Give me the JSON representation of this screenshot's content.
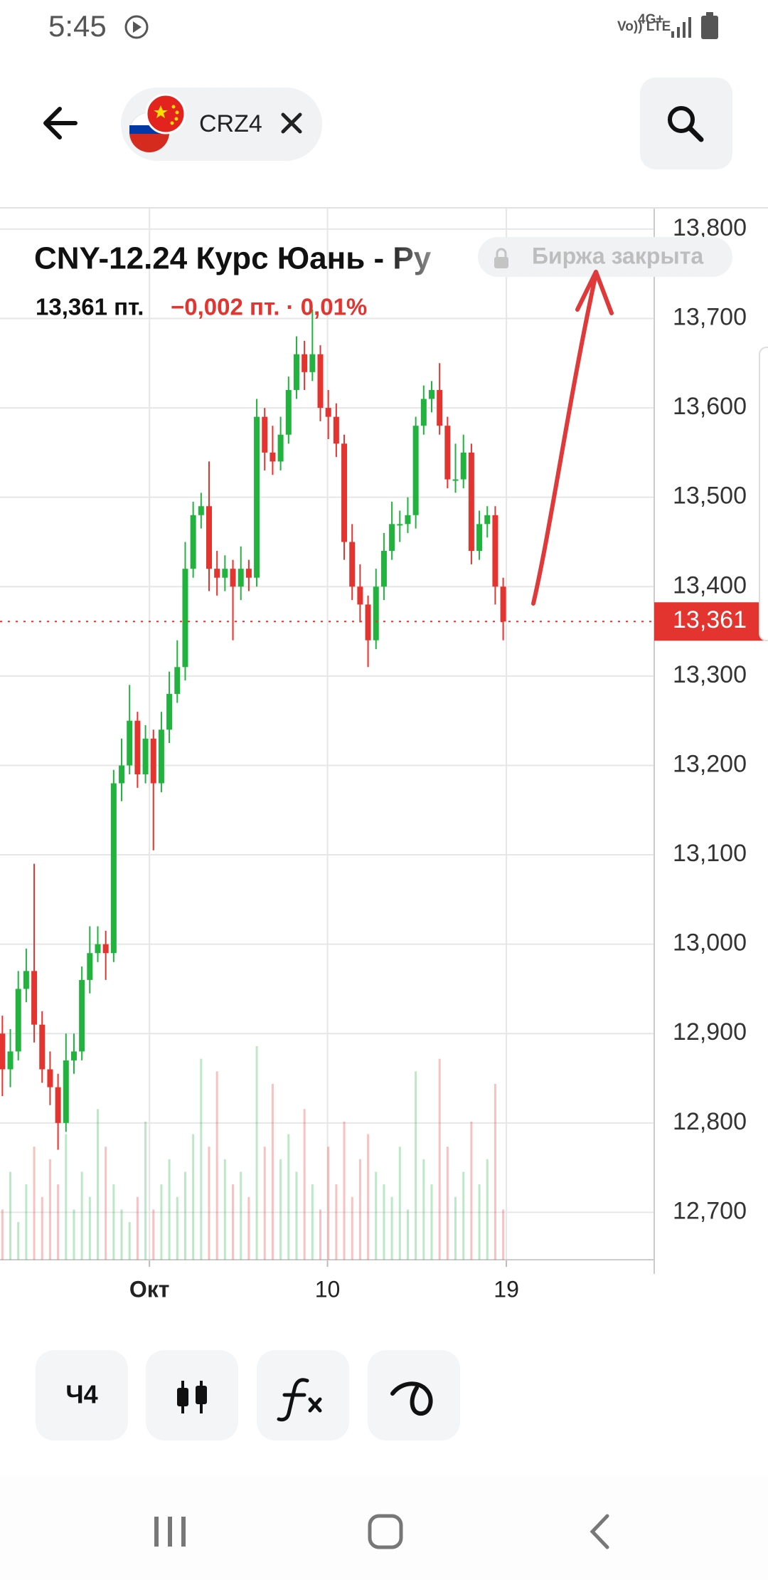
{
  "status_bar": {
    "time": "5:45",
    "network": "Vo)) LTE",
    "signal": "4G+"
  },
  "header": {
    "ticker": "CRZ4"
  },
  "chart_data": {
    "type": "candlestick",
    "title": "CNY-12.24 Курс Юань - Ру",
    "price": "13,361 пт.",
    "change": "−0,002 пт. · 0,01%",
    "status": "Биржа закрыта",
    "up_color": "#22b33f",
    "down_color": "#e3342f",
    "grid": true,
    "ylim": [
      12647,
      13823
    ],
    "yticks": [
      {
        "value": 12700,
        "label": "12,700"
      },
      {
        "value": 12800,
        "label": "12,800"
      },
      {
        "value": 12900,
        "label": "12,900"
      },
      {
        "value": 13000,
        "label": "13,000"
      },
      {
        "value": 13100,
        "label": "13,100"
      },
      {
        "value": 13200,
        "label": "13,200"
      },
      {
        "value": 13300,
        "label": "13,300"
      },
      {
        "value": 13400,
        "label": "13,400"
      },
      {
        "value": 13500,
        "label": "13,500"
      },
      {
        "value": 13600,
        "label": "13,600"
      },
      {
        "value": 13700,
        "label": "13,700"
      },
      {
        "value": 13800,
        "label": "13,800"
      }
    ],
    "xlim": [
      -0.3,
      82
    ],
    "xticks": [
      {
        "value": 18.5,
        "label": "Окт"
      },
      {
        "value": 40.9,
        "label": "10"
      },
      {
        "value": 63.4,
        "label": "19"
      }
    ],
    "last": {
      "value": 13361,
      "label": "13,361"
    },
    "open": [
      12900,
      12860,
      12880,
      12950,
      12970,
      12910,
      12860,
      12840,
      12800,
      12870,
      12880,
      12960,
      12990,
      13000,
      12990,
      13180,
      13200,
      13250,
      13190,
      13230,
      13180,
      13240,
      13280,
      13310,
      13420,
      13480,
      13490,
      13420,
      13410,
      13420,
      13400,
      13420,
      13410,
      13590,
      13550,
      13540,
      13570,
      13620,
      13660,
      13640,
      13660,
      13600,
      13590,
      13560,
      13450,
      13400,
      13380,
      13340,
      13400,
      13440,
      13470,
      13470,
      13480,
      13580,
      13610,
      13620,
      13580,
      13520,
      13520,
      13550,
      13440,
      13470,
      13480,
      13400
    ],
    "high": [
      12920,
      12905,
      12970,
      12995,
      13090,
      12925,
      12880,
      12855,
      12900,
      12900,
      12975,
      13020,
      13020,
      13015,
      13195,
      13230,
      13290,
      13260,
      13245,
      13240,
      13260,
      13305,
      13340,
      13450,
      13495,
      13505,
      13540,
      13440,
      13435,
      13430,
      13445,
      13430,
      13610,
      13600,
      13580,
      13590,
      13635,
      13680,
      13675,
      13710,
      13670,
      13620,
      13605,
      13570,
      13470,
      13425,
      13390,
      13420,
      13460,
      13495,
      13485,
      13500,
      13590,
      13625,
      13630,
      13650,
      13590,
      13560,
      13570,
      13560,
      13485,
      13490,
      13490,
      13410
    ],
    "low": [
      12830,
      12840,
      12870,
      12935,
      12890,
      12845,
      12820,
      12770,
      12790,
      12855,
      12870,
      12945,
      12980,
      12960,
      12980,
      13160,
      13190,
      13175,
      13180,
      13105,
      13170,
      13225,
      13270,
      13295,
      13410,
      13465,
      13395,
      13390,
      13395,
      13340,
      13385,
      13395,
      13400,
      13530,
      13525,
      13530,
      13560,
      13610,
      13620,
      13630,
      13585,
      13565,
      13545,
      13430,
      13385,
      13360,
      13310,
      13330,
      13385,
      13430,
      13450,
      13460,
      13465,
      13570,
      13595,
      13570,
      13510,
      13505,
      13510,
      13425,
      13430,
      13455,
      13380,
      13340
    ],
    "close": [
      12860,
      12880,
      12950,
      12970,
      12910,
      12860,
      12840,
      12800,
      12870,
      12880,
      12960,
      12990,
      13000,
      12990,
      13180,
      13200,
      13250,
      13190,
      13230,
      13180,
      13240,
      13280,
      13310,
      13420,
      13480,
      13490,
      13420,
      13410,
      13420,
      13400,
      13420,
      13410,
      13590,
      13550,
      13540,
      13570,
      13620,
      13660,
      13640,
      13660,
      13600,
      13590,
      13560,
      13450,
      13400,
      13380,
      13340,
      13400,
      13440,
      13470,
      13470,
      13480,
      13580,
      13610,
      13620,
      13580,
      13520,
      13520,
      13550,
      13440,
      13470,
      13480,
      13400,
      13361
    ],
    "volume": [
      20,
      35,
      15,
      30,
      45,
      25,
      40,
      30,
      50,
      20,
      35,
      25,
      60,
      45,
      30,
      20,
      15,
      25,
      55,
      20,
      30,
      40,
      25,
      35,
      50,
      80,
      45,
      75,
      40,
      30,
      35,
      25,
      85,
      45,
      70,
      40,
      50,
      35,
      60,
      30,
      20,
      45,
      30,
      55,
      25,
      40,
      50,
      35,
      30,
      25,
      45,
      20,
      75,
      40,
      30,
      80,
      45,
      25,
      35,
      55,
      30,
      40,
      70,
      20
    ]
  },
  "toolbar": {
    "interval": "Ч4"
  }
}
